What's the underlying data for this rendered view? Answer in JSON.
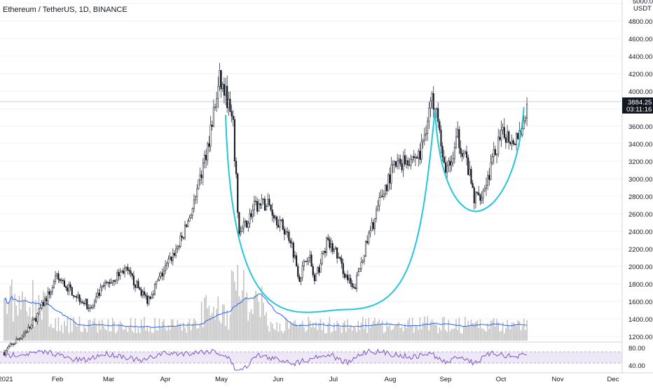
{
  "header": {
    "title": "Ethereum / TetherUS, 1D, BINANCE"
  },
  "price_axis": {
    "unit_label": "USDT",
    "ticks": [
      "5000.00",
      "4800.00",
      "4600.00",
      "4400.00",
      "4200.00",
      "4000.00",
      "3600.00",
      "3400.00",
      "3200.00",
      "3000.00",
      "2800.00",
      "2600.00",
      "2400.00",
      "2200.00",
      "2000.00",
      "1800.00",
      "1600.00",
      "1400.00",
      "1200.00"
    ],
    "current_price": "3884.25",
    "countdown": "03:11:16"
  },
  "rsi_axis": {
    "ticks": [
      "80.00",
      "40.00"
    ]
  },
  "time_axis": {
    "labels": [
      "2021",
      "Feb",
      "Mar",
      "Apr",
      "May",
      "Jun",
      "Jul",
      "Aug",
      "Sep",
      "Oct",
      "Nov",
      "Dec"
    ]
  },
  "colors": {
    "candle": "#131722",
    "pattern": "#26c6da",
    "ma": "#2962ff",
    "volume": "#c3c3c3",
    "rsi": "#7e57c2",
    "rsi_band": "#ede7f6"
  },
  "chart_data": {
    "type": "candlestick",
    "title": "Ethereum / TetherUS, 1D, BINANCE",
    "ylim": [
      1200,
      5000
    ],
    "x": [
      "2021-01",
      "2021-01",
      "2021-02",
      "2021-02",
      "2021-03",
      "2021-03",
      "2021-04",
      "2021-04",
      "2021-05",
      "2021-05",
      "2021-05",
      "2021-05",
      "2021-05",
      "2021-06",
      "2021-06",
      "2021-06",
      "2021-06",
      "2021-07",
      "2021-07",
      "2021-07",
      "2021-08",
      "2021-08",
      "2021-08",
      "2021-09",
      "2021-09",
      "2021-09",
      "2021-09",
      "2021-09",
      "2021-10",
      "2021-10"
    ],
    "close": [
      1100,
      1300,
      1650,
      1900,
      1550,
      1800,
      1950,
      2300,
      3000,
      4100,
      3800,
      2800,
      2500,
      2700,
      2400,
      2100,
      1900,
      2300,
      1850,
      2000,
      2600,
      3100,
      3300,
      3900,
      3300,
      3000,
      2900,
      3400,
      3600,
      3884
    ],
    "cup_and_handle": {
      "cup_left": 4000,
      "cup_bottom": 1540,
      "cup_right": 3900,
      "handle_bottom": 2660
    }
  }
}
